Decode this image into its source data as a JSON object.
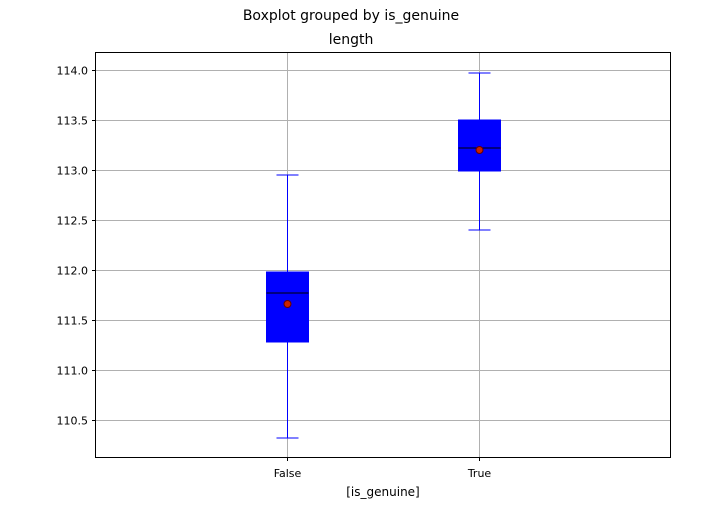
{
  "chart_data": {
    "type": "box",
    "suptitle": "Boxplot grouped by is_genuine",
    "title": "length",
    "xlabel": "[is_genuine]",
    "ylabel": "",
    "categories": [
      "False",
      "True"
    ],
    "ylim": [
      110.13,
      114.17
    ],
    "yticks": [
      110.5,
      111.0,
      111.5,
      112.0,
      112.5,
      113.0,
      113.5,
      114.0
    ],
    "ytick_labels": [
      "110.5",
      "111.0",
      "111.5",
      "112.0",
      "112.5",
      "113.0",
      "113.5",
      "114.0"
    ],
    "grid": true,
    "boxes": [
      {
        "category": "False",
        "whisker_low": 110.32,
        "q1": 111.28,
        "median": 111.77,
        "mean": 111.66,
        "q3": 111.98,
        "whisker_high": 112.95
      },
      {
        "category": "True",
        "whisker_low": 112.4,
        "q1": 112.99,
        "median": 113.22,
        "mean": 113.2,
        "q3": 113.5,
        "whisker_high": 113.97
      }
    ],
    "colors": {
      "box_fill": "#0000ff",
      "box_edge": "#0000ff",
      "whisker": "#0000ff",
      "median": "#000000",
      "mean_marker_fill": "#cc2200",
      "mean_marker_edge": "#660000",
      "grid": "#b0b0b0",
      "axes": "#000000"
    }
  }
}
